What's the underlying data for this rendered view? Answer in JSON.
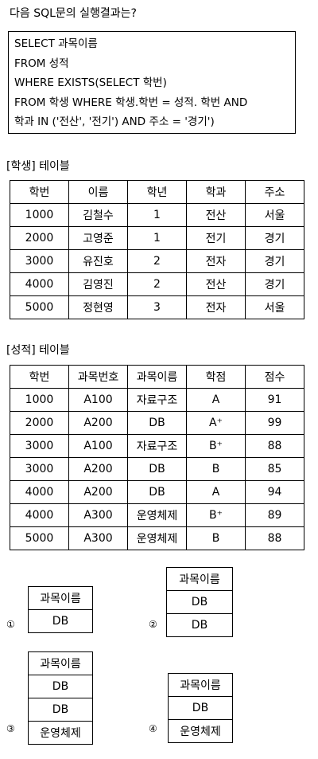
{
  "question": "다음 SQL문의 실행결과는?",
  "sql_lines": [
    "SELECT 과목이름",
    "FROM 성적",
    "WHERE EXISTS(SELECT 학번)",
    "FROM 학생 WHERE 학생.학번 = 성적. 학번 AND",
    "학과 IN ('전산', '전기') AND 주소 = '경기')"
  ],
  "student_table": {
    "caption": "[학생] 테이블",
    "headers": [
      "학번",
      "이름",
      "학년",
      "학과",
      "주소"
    ],
    "rows": [
      [
        "1000",
        "김철수",
        "1",
        "전산",
        "서울"
      ],
      [
        "2000",
        "고영준",
        "1",
        "전기",
        "경기"
      ],
      [
        "3000",
        "유진호",
        "2",
        "전자",
        "경기"
      ],
      [
        "4000",
        "김영진",
        "2",
        "전산",
        "경기"
      ],
      [
        "5000",
        "정현영",
        "3",
        "전자",
        "서울"
      ]
    ]
  },
  "grade_table": {
    "caption": "[성적] 테이블",
    "headers": [
      "학번",
      "과목번호",
      "과목이름",
      "학점",
      "점수"
    ],
    "rows": [
      [
        "1000",
        "A100",
        "자료구조",
        "A",
        "91"
      ],
      [
        "2000",
        "A200",
        "DB",
        "A⁺",
        "99"
      ],
      [
        "3000",
        "A100",
        "자료구조",
        "B⁺",
        "88"
      ],
      [
        "3000",
        "A200",
        "DB",
        "B",
        "85"
      ],
      [
        "4000",
        "A200",
        "DB",
        "A",
        "94"
      ],
      [
        "4000",
        "A300",
        "운영체제",
        "B⁺",
        "89"
      ],
      [
        "5000",
        "A300",
        "운영체제",
        "B",
        "88"
      ]
    ]
  },
  "options": [
    {
      "marker": "①",
      "header": "과목이름",
      "rows": [
        "DB"
      ]
    },
    {
      "marker": "②",
      "header": "과목이름",
      "rows": [
        "DB",
        "DB"
      ]
    },
    {
      "marker": "③",
      "header": "과목이름",
      "rows": [
        "DB",
        "DB",
        "운영체제"
      ]
    },
    {
      "marker": "④",
      "header": "과목이름",
      "rows": [
        "DB",
        "운영체제"
      ]
    }
  ]
}
